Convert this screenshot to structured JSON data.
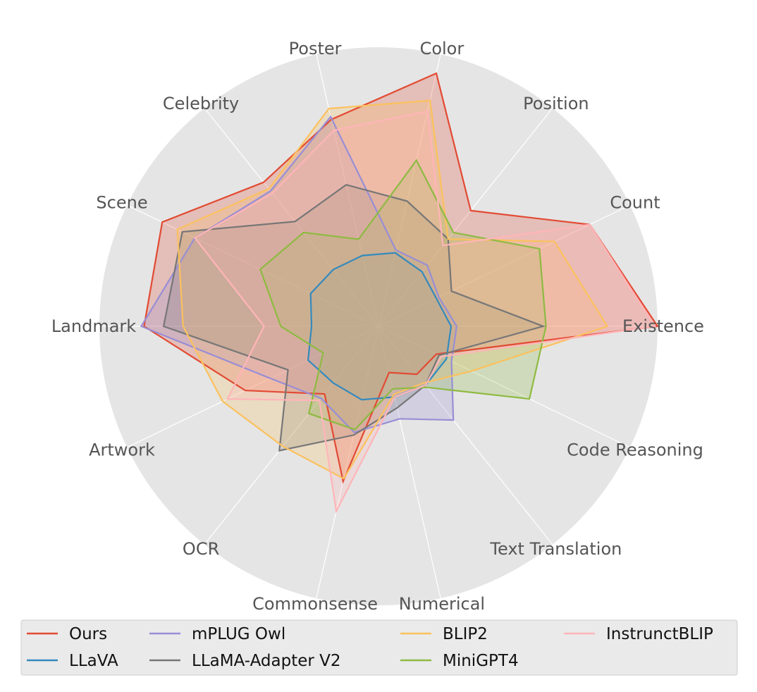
{
  "chart_data": {
    "type": "radar",
    "title": "",
    "axes": [
      "Existence",
      "Count",
      "Position",
      "Color",
      "Poster",
      "Celebrity",
      "Scene",
      "Landmark",
      "Artwork",
      "OCR",
      "Commonsense",
      "Numerical",
      "Text Translation",
      "Code Reasoning"
    ],
    "rlim": [
      0,
      1
    ],
    "grid": true,
    "legend_position": "bottom",
    "series": [
      {
        "name": "Ours",
        "color": "#E24A33",
        "values": [
          1.0,
          0.84,
          0.53,
          0.93,
          0.76,
          0.66,
          0.86,
          0.84,
          0.53,
          0.31,
          0.57,
          0.17,
          0.22,
          0.23
        ]
      },
      {
        "name": "LLaVA",
        "color": "#348ABD",
        "values": [
          0.26,
          0.23,
          0.25,
          0.27,
          0.26,
          0.26,
          0.27,
          0.24,
          0.28,
          0.26,
          0.27,
          0.26,
          0.27,
          0.27
        ]
      },
      {
        "name": "mPLUG Owl",
        "color": "#988ED5",
        "values": [
          0.28,
          0.24,
          0.28,
          0.28,
          0.77,
          0.62,
          0.73,
          0.85,
          0.43,
          0.33,
          0.39,
          0.34,
          0.43,
          0.29
        ]
      },
      {
        "name": "LLaMA-Adapter V2",
        "color": "#777777",
        "values": [
          0.59,
          0.29,
          0.4,
          0.46,
          0.52,
          0.48,
          0.78,
          0.77,
          0.36,
          0.57,
          0.4,
          0.3,
          0.27,
          0.24
        ]
      },
      {
        "name": "BLIP2",
        "color": "#FBC15E",
        "values": [
          0.82,
          0.7,
          0.4,
          0.83,
          0.8,
          0.63,
          0.8,
          0.7,
          0.62,
          0.55,
          0.56,
          0.25,
          0.26,
          0.37
        ]
      },
      {
        "name": "MiniGPT4",
        "color": "#8EBA42",
        "values": [
          0.6,
          0.64,
          0.43,
          0.61,
          0.32,
          0.43,
          0.47,
          0.35,
          0.22,
          0.4,
          0.38,
          0.23,
          0.28,
          0.6
        ]
      },
      {
        "name": "InstrunctBLIP",
        "color": "#FFB5B8",
        "values": [
          0.99,
          0.84,
          0.37,
          0.79,
          0.72,
          0.61,
          0.73,
          0.41,
          0.6,
          0.34,
          0.68,
          0.26,
          0.27,
          0.25
        ]
      }
    ]
  }
}
